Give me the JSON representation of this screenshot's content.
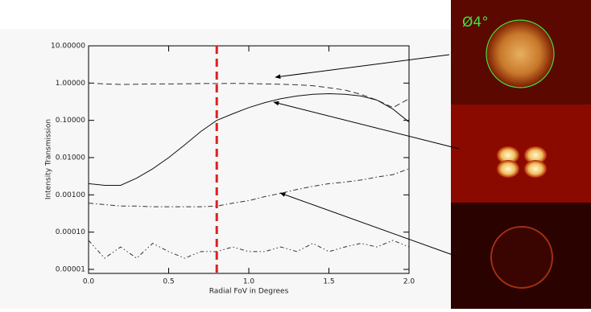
{
  "chart_data": {
    "type": "line",
    "x_label": "Radial FoV in Degrees",
    "y_label": "Intensity Transmission",
    "annotation": "Ø4°",
    "log_y": true,
    "x": [
      0,
      0.1,
      0.2,
      0.3,
      0.4,
      0.5,
      0.6,
      0.7,
      0.8,
      0.9,
      1.0,
      1.1,
      1.2,
      1.3,
      1.4,
      1.5,
      1.6,
      1.7,
      1.8,
      1.9,
      2.0
    ],
    "series": [
      {
        "color": "#333333",
        "dash": "dashed",
        "values": [
          1.0,
          0.95,
          0.92,
          0.93,
          0.95,
          0.95,
          0.96,
          0.97,
          0.97,
          0.98,
          0.97,
          0.95,
          0.93,
          0.9,
          0.85,
          0.75,
          0.65,
          0.5,
          0.35,
          0.22,
          0.38
        ]
      },
      {
        "color": "#111111",
        "dash": "solid",
        "values": [
          0.002,
          0.0018,
          0.0018,
          0.0028,
          0.005,
          0.01,
          0.022,
          0.05,
          0.1,
          0.15,
          0.22,
          0.3,
          0.38,
          0.45,
          0.5,
          0.52,
          0.5,
          0.45,
          0.35,
          0.2,
          0.09
        ]
      },
      {
        "color": "#333333",
        "dash": "dashdot",
        "values": [
          0.0006,
          0.00055,
          0.0005,
          0.0005,
          0.00048,
          0.00048,
          0.00048,
          0.00048,
          0.0005,
          0.0006,
          0.0007,
          0.0009,
          0.0011,
          0.0014,
          0.0017,
          0.002,
          0.0022,
          0.0025,
          0.003,
          0.0035,
          0.005
        ]
      },
      {
        "color": "#333333",
        "dash": "dashdotdot",
        "values": [
          6e-05,
          2e-05,
          4e-05,
          2e-05,
          5e-05,
          3e-05,
          2e-05,
          3e-05,
          3e-05,
          4e-05,
          3e-05,
          3e-05,
          4e-05,
          3e-05,
          5e-05,
          3e-05,
          4e-05,
          5e-05,
          4e-05,
          6e-05,
          4e-05
        ]
      }
    ],
    "vline": {
      "x": 0.8,
      "color": "#dd2020"
    },
    "xlim": [
      0,
      2
    ],
    "xticks": [
      {
        "value": 0,
        "label": "0.0"
      },
      {
        "value": 0.5,
        "label": "0.5"
      },
      {
        "value": 1,
        "label": "1.0"
      },
      {
        "value": 1.5,
        "label": "1.5"
      },
      {
        "value": 2,
        "label": "2.0"
      }
    ],
    "ylim": [
      1e-05,
      10
    ],
    "yticks": [
      {
        "value": 10,
        "label": "10.00000"
      },
      {
        "value": 1,
        "label": "1.00000"
      },
      {
        "value": 0.1,
        "label": "0.10000"
      },
      {
        "value": 0.01,
        "label": "0.01000"
      },
      {
        "value": 0.001,
        "label": "0.00100"
      },
      {
        "value": 0.0001,
        "label": "0.00010"
      },
      {
        "value": 1e-05,
        "label": "0.00001"
      }
    ]
  }
}
